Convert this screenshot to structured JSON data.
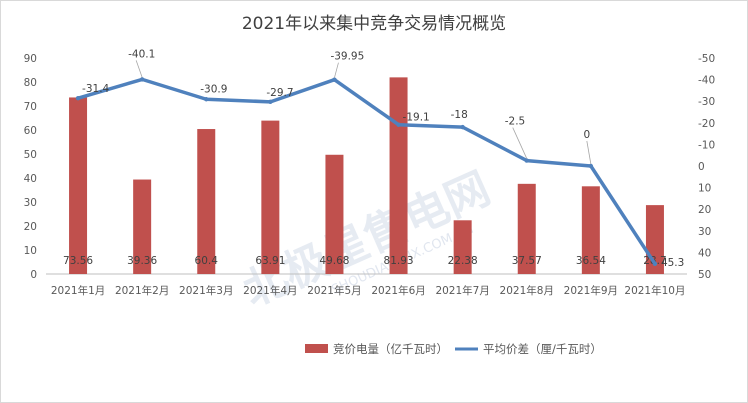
{
  "chart_data": {
    "type": "bar",
    "title": "2021年以来集中竞争交易情况概览",
    "categories": [
      "2021年1月",
      "2021年2月",
      "2021年3月",
      "2021年4月",
      "2021年5月",
      "2021年6月",
      "2021年7月",
      "2021年8月",
      "2021年9月",
      "2021年10月"
    ],
    "y_left": {
      "ticks": [
        "0",
        "10",
        "20",
        "30",
        "40",
        "50",
        "60",
        "70",
        "80",
        "90"
      ],
      "ylim": [
        0,
        90
      ]
    },
    "y_right": {
      "ticks": [
        "50",
        "40",
        "30",
        "20",
        "10",
        "0",
        "-10",
        "-20",
        "-30",
        "-40",
        "-50"
      ],
      "ylim": [
        50,
        -50
      ],
      "inverted": true
    },
    "series": [
      {
        "name": "竞价电量（亿千瓦时）",
        "type": "bar",
        "axis": "left",
        "color": "#c0504d",
        "values": [
          73.56,
          39.36,
          60.4,
          63.91,
          49.68,
          81.93,
          22.38,
          37.57,
          36.54,
          28.7
        ],
        "labels": [
          "73.56",
          "39.36",
          "60.4",
          "63.91",
          "49.68",
          "81.93",
          "22.38",
          "37.57",
          "36.54",
          "28.7"
        ]
      },
      {
        "name": "平均价差（厘/千瓦时）",
        "type": "line",
        "axis": "right",
        "color": "#4f81bd",
        "values": [
          -31.4,
          -40.1,
          -30.9,
          -29.7,
          -39.95,
          -19.1,
          -18,
          -2.5,
          0,
          45.3
        ],
        "labels": [
          "-31.4",
          "-40.1",
          "-30.9",
          "-29.7",
          "-39.95",
          "-19.1",
          "-18",
          "-2.5",
          "0",
          "45.3"
        ]
      }
    ],
    "legend_position": "bottom-right",
    "grid": false
  },
  "watermark": {
    "main": "北极星售电网",
    "sub": "SHOUDIAN.BJX.COM.CN"
  }
}
